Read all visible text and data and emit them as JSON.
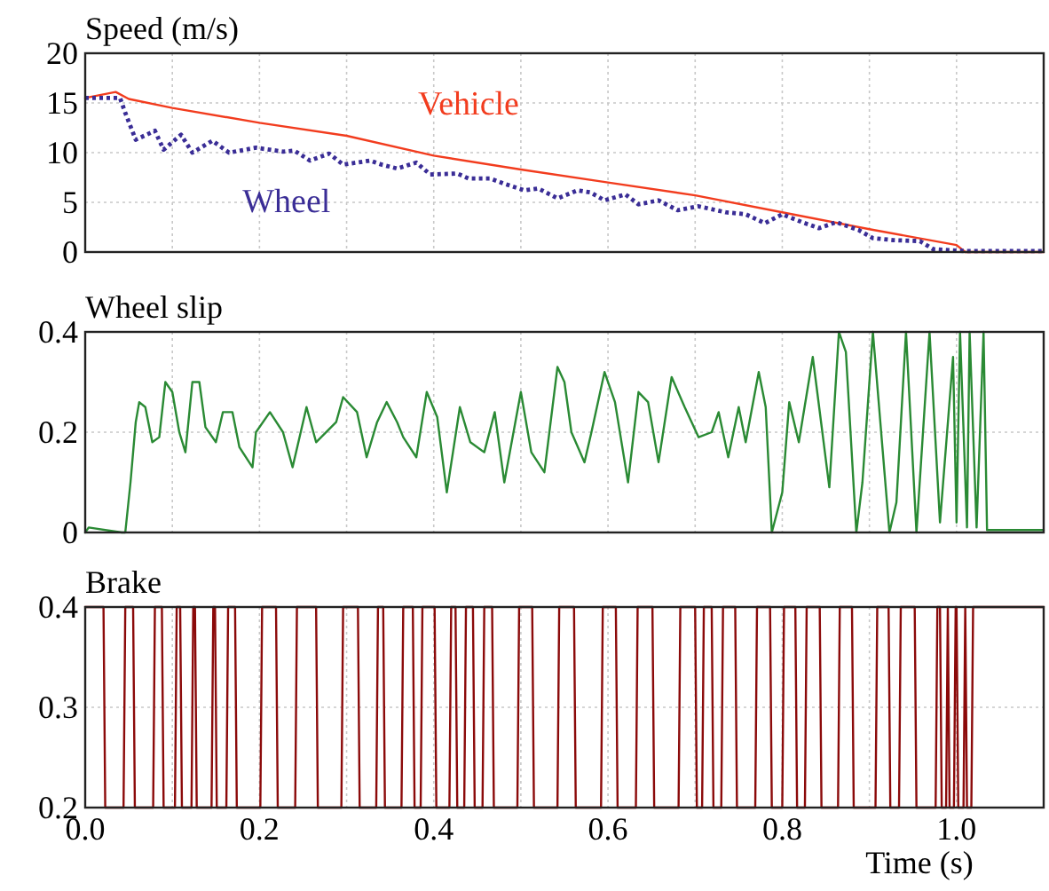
{
  "chart_data": [
    {
      "type": "line",
      "title": "Speed (m/s)",
      "xlim": [
        0,
        1.1
      ],
      "ylim": [
        0,
        20
      ],
      "yticks": [
        0,
        5,
        10,
        15,
        20
      ],
      "xticks": [
        {
          "value": 0,
          "label": null
        },
        {
          "value": 0.1,
          "label": null
        },
        {
          "value": 0.2,
          "label": null
        },
        {
          "value": 0.3,
          "label": null
        },
        {
          "value": 0.4,
          "label": null
        },
        {
          "value": 0.5,
          "label": null
        },
        {
          "value": 0.6,
          "label": null
        },
        {
          "value": 0.7,
          "label": null
        },
        {
          "value": 0.8,
          "label": null
        },
        {
          "value": 0.9,
          "label": null
        },
        {
          "value": 1.0,
          "label": null
        }
      ],
      "grid": true,
      "tick_labels": "y",
      "series": [
        {
          "name": "Vehicle",
          "color": "#f23c1e",
          "x": [
            0,
            0.035,
            0.05,
            0.1,
            0.2,
            0.3,
            0.4,
            0.5,
            0.6,
            0.7,
            0.8,
            0.9,
            1.0,
            1.01,
            1.1
          ],
          "values": [
            15.5,
            16.1,
            15.4,
            14.5,
            13,
            11.7,
            9.7,
            8.3,
            7,
            5.7,
            4,
            2.3,
            0.7,
            0,
            0
          ]
        },
        {
          "name": "Wheel",
          "color": "#3a2d96",
          "line_style": "dotted",
          "x": [
            0,
            0.04,
            0.046,
            0.058,
            0.08,
            0.09,
            0.11,
            0.123,
            0.146,
            0.165,
            0.196,
            0.227,
            0.24,
            0.258,
            0.28,
            0.296,
            0.327,
            0.34,
            0.358,
            0.38,
            0.396,
            0.427,
            0.44,
            0.465,
            0.48,
            0.504,
            0.52,
            0.542,
            0.565,
            0.58,
            0.596,
            0.62,
            0.635,
            0.658,
            0.68,
            0.704,
            0.735,
            0.758,
            0.78,
            0.8,
            0.823,
            0.842,
            0.862,
            0.888,
            0.904,
            0.927,
            0.958,
            0.973,
            1.01,
            1.1
          ],
          "values": [
            15.5,
            15.5,
            14,
            11.3,
            12.2,
            10.3,
            11.8,
            10,
            11.2,
            10,
            10.5,
            10.1,
            10.2,
            9.2,
            9.9,
            8.8,
            9.2,
            8.8,
            8.4,
            9,
            7.8,
            7.9,
            7.4,
            7.4,
            6.9,
            6.2,
            6.4,
            5.4,
            6.2,
            6,
            5.2,
            5.8,
            4.8,
            5.2,
            4.2,
            4.6,
            4,
            3.8,
            2.9,
            3.8,
            3,
            2.4,
            3,
            2.2,
            1.4,
            1.2,
            1.1,
            0.3,
            0.1,
            0.1
          ]
        }
      ]
    },
    {
      "type": "line",
      "title": "Wheel slip",
      "xlim": [
        0,
        1.1
      ],
      "ylim": [
        0,
        0.4
      ],
      "yticks": [
        0,
        0.2,
        0.4
      ],
      "xticks": [
        {
          "value": 0,
          "label": null
        },
        {
          "value": 0.1,
          "label": null
        },
        {
          "value": 0.2,
          "label": null
        },
        {
          "value": 0.3,
          "label": null
        },
        {
          "value": 0.4,
          "label": null
        },
        {
          "value": 0.5,
          "label": null
        },
        {
          "value": 0.6,
          "label": null
        },
        {
          "value": 0.7,
          "label": null
        },
        {
          "value": 0.8,
          "label": null
        },
        {
          "value": 0.9,
          "label": null
        },
        {
          "value": 1.0,
          "label": null
        }
      ],
      "grid": true,
      "tick_labels": "y",
      "series": [
        {
          "color": "#2a8a34",
          "x": [
            0,
            0.004,
            0.042,
            0.046,
            0.052,
            0.058,
            0.062,
            0.069,
            0.077,
            0.085,
            0.092,
            0.1,
            0.108,
            0.115,
            0.123,
            0.131,
            0.138,
            0.15,
            0.158,
            0.169,
            0.177,
            0.192,
            0.196,
            0.212,
            0.227,
            0.238,
            0.254,
            0.265,
            0.288,
            0.296,
            0.312,
            0.323,
            0.335,
            0.346,
            0.358,
            0.365,
            0.38,
            0.392,
            0.404,
            0.415,
            0.43,
            0.442,
            0.458,
            0.47,
            0.481,
            0.5,
            0.512,
            0.527,
            0.542,
            0.55,
            0.558,
            0.573,
            0.581,
            0.596,
            0.608,
            0.623,
            0.635,
            0.646,
            0.658,
            0.673,
            0.688,
            0.704,
            0.719,
            0.727,
            0.738,
            0.75,
            0.758,
            0.773,
            0.781,
            0.788,
            0.8,
            0.808,
            0.819,
            0.835,
            0.846,
            0.854,
            0.865,
            0.873,
            0.885,
            0.892,
            0.904,
            0.923,
            0.931,
            0.942,
            0.954,
            0.969,
            0.981,
            0.996,
            1.0,
            1.004,
            1.012,
            1.015,
            1.023,
            1.031,
            1.035,
            1.1
          ],
          "values": [
            0,
            0.01,
            0,
            0,
            0.1,
            0.22,
            0.26,
            0.25,
            0.18,
            0.19,
            0.3,
            0.28,
            0.2,
            0.16,
            0.3,
            0.3,
            0.21,
            0.18,
            0.24,
            0.24,
            0.17,
            0.13,
            0.2,
            0.24,
            0.2,
            0.13,
            0.25,
            0.18,
            0.22,
            0.27,
            0.24,
            0.15,
            0.22,
            0.26,
            0.22,
            0.19,
            0.15,
            0.28,
            0.23,
            0.08,
            0.25,
            0.18,
            0.16,
            0.24,
            0.1,
            0.28,
            0.16,
            0.12,
            0.33,
            0.3,
            0.2,
            0.14,
            0.2,
            0.32,
            0.26,
            0.1,
            0.28,
            0.26,
            0.14,
            0.31,
            0.25,
            0.19,
            0.2,
            0.24,
            0.15,
            0.25,
            0.18,
            0.32,
            0.25,
            0,
            0.08,
            0.26,
            0.18,
            0.35,
            0.2,
            0.09,
            0.4,
            0.36,
            0,
            0.1,
            0.4,
            0,
            0.06,
            0.4,
            0,
            0.4,
            0.02,
            0.35,
            0.02,
            0.4,
            0.01,
            0.4,
            0.01,
            0.4,
            0.005,
            0.005
          ]
        }
      ]
    },
    {
      "type": "line",
      "title": "Brake",
      "xlabel": "Time (s)",
      "xlim": [
        0,
        1.1
      ],
      "ylim": [
        0.2,
        0.4
      ],
      "yticks": [
        0.2,
        0.3,
        0.4
      ],
      "xticks": [
        {
          "value": 0,
          "label": "0.0"
        },
        {
          "value": 0.1,
          "label": null
        },
        {
          "value": 0.2,
          "label": "0.2"
        },
        {
          "value": 0.3,
          "label": null
        },
        {
          "value": 0.4,
          "label": "0.4"
        },
        {
          "value": 0.5,
          "label": null
        },
        {
          "value": 0.6,
          "label": "0.6"
        },
        {
          "value": 0.7,
          "label": null
        },
        {
          "value": 0.8,
          "label": "0.8"
        },
        {
          "value": 0.9,
          "label": null
        },
        {
          "value": 1.0,
          "label": "1.0"
        }
      ],
      "grid": true,
      "series": [
        {
          "color": "#8b0a0a",
          "x": [
            0,
            0.021,
            0.023,
            0.044,
            0.046,
            0.055,
            0.057,
            0.078,
            0.08,
            0.088,
            0.09,
            0.103,
            0.105,
            0.109,
            0.111,
            0.122,
            0.124,
            0.126,
            0.128,
            0.145,
            0.147,
            0.149,
            0.151,
            0.162,
            0.164,
            0.172,
            0.174,
            0.201,
            0.203,
            0.219,
            0.221,
            0.241,
            0.243,
            0.265,
            0.267,
            0.294,
            0.296,
            0.313,
            0.315,
            0.334,
            0.336,
            0.342,
            0.344,
            0.363,
            0.365,
            0.376,
            0.378,
            0.385,
            0.387,
            0.401,
            0.403,
            0.418,
            0.42,
            0.425,
            0.427,
            0.435,
            0.437,
            0.445,
            0.447,
            0.456,
            0.458,
            0.467,
            0.469,
            0.496,
            0.498,
            0.513,
            0.515,
            0.542,
            0.544,
            0.561,
            0.563,
            0.592,
            0.594,
            0.609,
            0.611,
            0.632,
            0.634,
            0.651,
            0.653,
            0.681,
            0.683,
            0.7,
            0.702,
            0.708,
            0.71,
            0.719,
            0.721,
            0.73,
            0.732,
            0.746,
            0.748,
            0.769,
            0.771,
            0.786,
            0.788,
            0.8,
            0.802,
            0.815,
            0.817,
            0.826,
            0.828,
            0.843,
            0.845,
            0.864,
            0.866,
            0.88,
            0.882,
            0.907,
            0.909,
            0.922,
            0.924,
            0.934,
            0.936,
            0.952,
            0.954,
            0.976,
            0.978,
            0.981,
            0.983,
            0.988,
            0.99,
            0.99,
            0.992,
            0.997,
            0.999,
            1.0,
            1.002,
            1.008,
            1.01,
            1.01,
            1.012,
            1.017,
            1.019,
            1.1
          ],
          "values": [
            0.4,
            0.4,
            0.2,
            0.2,
            0.4,
            0.4,
            0.2,
            0.2,
            0.4,
            0.4,
            0.2,
            0.2,
            0.4,
            0.4,
            0.2,
            0.2,
            0.4,
            0.4,
            0.2,
            0.2,
            0.4,
            0.4,
            0.2,
            0.2,
            0.4,
            0.4,
            0.2,
            0.2,
            0.4,
            0.4,
            0.2,
            0.2,
            0.4,
            0.4,
            0.2,
            0.2,
            0.4,
            0.4,
            0.2,
            0.2,
            0.4,
            0.4,
            0.2,
            0.2,
            0.4,
            0.4,
            0.2,
            0.2,
            0.4,
            0.4,
            0.2,
            0.2,
            0.4,
            0.4,
            0.2,
            0.2,
            0.4,
            0.4,
            0.2,
            0.2,
            0.4,
            0.4,
            0.2,
            0.2,
            0.4,
            0.4,
            0.2,
            0.2,
            0.4,
            0.4,
            0.2,
            0.2,
            0.4,
            0.4,
            0.2,
            0.2,
            0.4,
            0.4,
            0.2,
            0.2,
            0.4,
            0.4,
            0.2,
            0.2,
            0.4,
            0.4,
            0.2,
            0.2,
            0.4,
            0.4,
            0.2,
            0.2,
            0.4,
            0.4,
            0.2,
            0.2,
            0.4,
            0.4,
            0.2,
            0.2,
            0.4,
            0.4,
            0.2,
            0.2,
            0.4,
            0.4,
            0.2,
            0.2,
            0.4,
            0.4,
            0.2,
            0.2,
            0.4,
            0.4,
            0.2,
            0.2,
            0.4,
            0.4,
            0.2,
            0.2,
            0.4,
            0.4,
            0.2,
            0.2,
            0.4,
            0.4,
            0.2,
            0.2,
            0.4,
            0.4,
            0.2,
            0.2,
            0.4,
            0.4
          ]
        }
      ]
    }
  ]
}
